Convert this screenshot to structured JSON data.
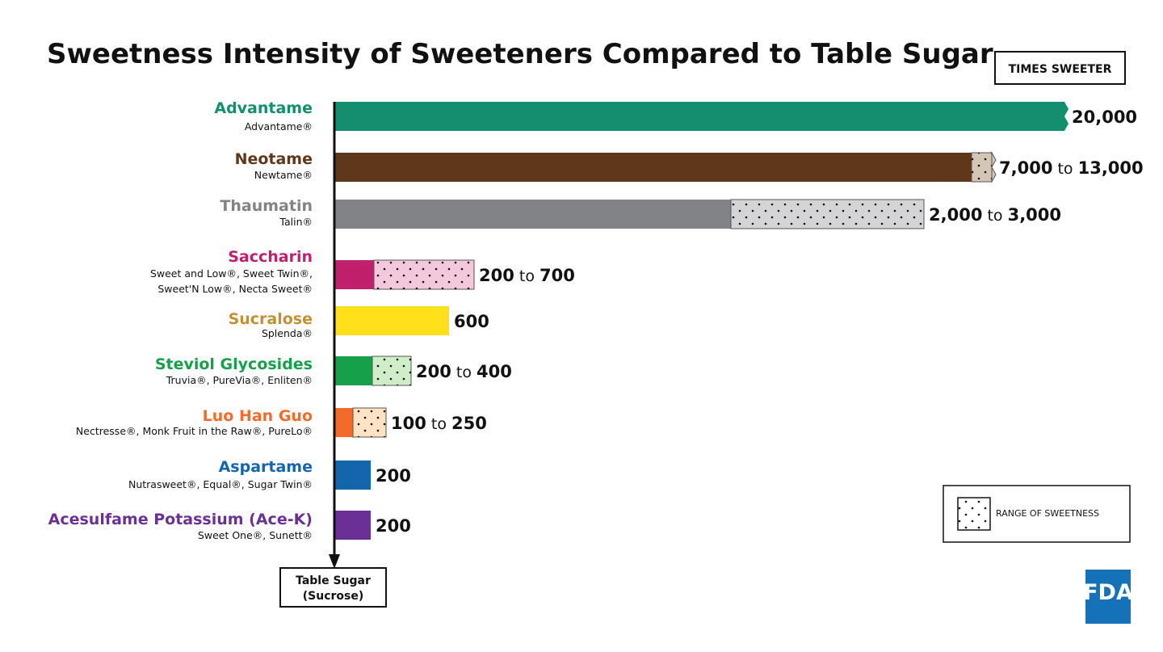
{
  "chart_data": {
    "type": "bar",
    "title": "Sweetness Intensity of Sweeteners Compared to Table Sugar",
    "unit_label": "TIMES SWEETER",
    "baseline_label_line1": "Table Sugar",
    "baseline_label_line2": "(Sucrose)",
    "legend_label": "RANGE OF SWEETNESS",
    "logo_text": "FDA",
    "range_connector": "to",
    "categories": [
      "Advantame",
      "Neotame",
      "Thaumatin",
      "Saccharin",
      "Sucralose",
      "Steviol Glycosides",
      "Luo Han Guo",
      "Aspartame",
      "Acesulfame Potassium (Ace-K)"
    ],
    "items": [
      {
        "name": "Advantame",
        "brands": [
          "Advantame®"
        ],
        "min": 20000,
        "max": null,
        "label_min": "20,000",
        "label_max": "",
        "color": "#138f6f",
        "broken_axis": true
      },
      {
        "name": "Neotame",
        "brands": [
          "Newtame®"
        ],
        "min": 7000,
        "max": 13000,
        "label_min": "7,000",
        "label_max": "13,000",
        "color": "#5f371b"
      },
      {
        "name": "Thaumatin",
        "brands": [
          "Talin®"
        ],
        "min": 2000,
        "max": 3000,
        "label_min": "2,000",
        "label_max": "3,000",
        "color": "#828386"
      },
      {
        "name": "Saccharin",
        "brands": [
          "Sweet and Low®, Sweet Twin®,",
          "Sweet'N Low®, Necta Sweet®"
        ],
        "min": 200,
        "max": 700,
        "label_min": "200",
        "label_max": "700",
        "color": "#c01f6c"
      },
      {
        "name": "Sucralose",
        "brands": [
          "Splenda®"
        ],
        "min": 600,
        "max": null,
        "label_min": "600",
        "label_max": "",
        "color": "#ffe01b",
        "name_color": "#c39034"
      },
      {
        "name": "Steviol Glycosides",
        "brands": [
          "Truvia®, PureVia®, Enliten®"
        ],
        "min": 200,
        "max": 400,
        "label_min": "200",
        "label_max": "400",
        "color": "#17a04a"
      },
      {
        "name": "Luo Han Guo",
        "brands": [
          "Nectresse®, Monk Fruit in the Raw®, PureLo®"
        ],
        "min": 100,
        "max": 250,
        "label_min": "100",
        "label_max": "250",
        "color": "#f26b2a"
      },
      {
        "name": "Aspartame",
        "brands": [
          "Nutrasweet®, Equal®, Sugar Twin®"
        ],
        "min": 200,
        "max": null,
        "label_min": "200",
        "label_max": "",
        "color": "#1565ad"
      },
      {
        "name": "Acesulfame Potassium (Ace-K)",
        "brands": [
          "Sweet One®, Sunett®"
        ],
        "min": 200,
        "max": null,
        "label_min": "200",
        "label_max": "",
        "color": "#6a3096"
      }
    ],
    "range_fill_colors": [
      "",
      "#d5c5b5",
      "#d4d4d6",
      "#f3c8dc",
      "",
      "#cfeec8",
      "#fde3c4",
      "",
      ""
    ],
    "legend_position": "bottom-right",
    "grid": false
  }
}
